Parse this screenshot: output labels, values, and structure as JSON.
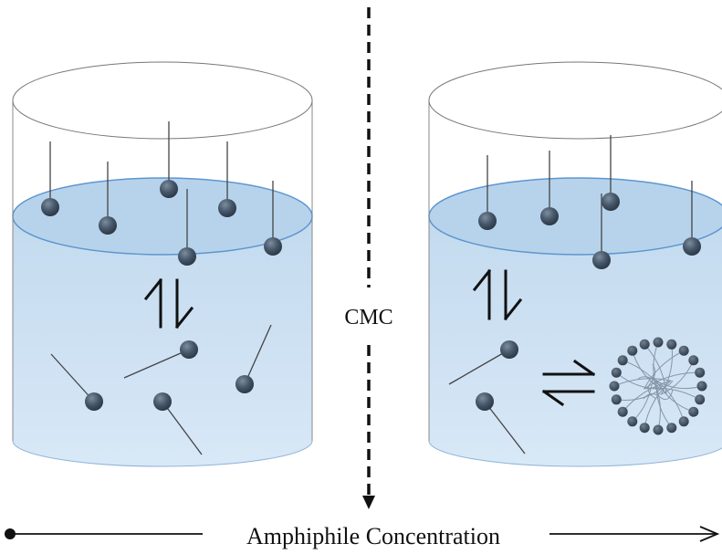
{
  "divider": {
    "label": "CMC"
  },
  "axis": {
    "label": "Amphiphile Concentration"
  },
  "colors": {
    "water_top": "#b9d4ec",
    "water_body_top": "#c5dbee",
    "water_body_bottom": "#d6e7f7",
    "water_edge": "#5d96cf",
    "container_line": "#777777",
    "head": "#3f5060",
    "tail": "#444444",
    "arrow": "#111111"
  },
  "icons": {
    "equilibrium_vertical": "vertical-equilibrium-arrows-icon",
    "equilibrium_horizontal": "horizontal-equilibrium-arrows-icon",
    "micelle": "micelle-icon"
  }
}
